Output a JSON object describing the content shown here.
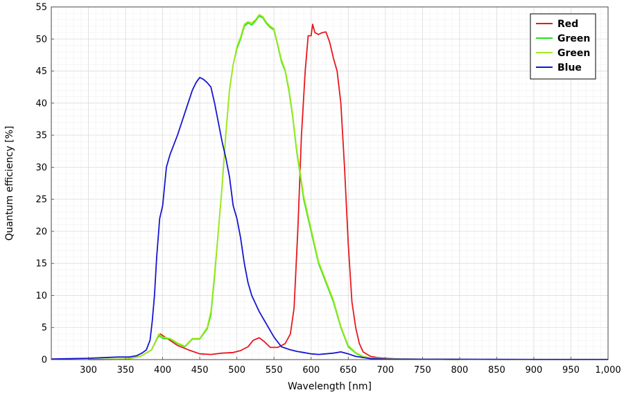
{
  "chart_data": {
    "type": "line",
    "xlabel": "Wavelength [nm]",
    "ylabel": "Quantum efficiency [%]",
    "xlim": [
      250,
      1000
    ],
    "ylim": [
      0,
      55
    ],
    "xticks": [
      300,
      350,
      400,
      450,
      500,
      550,
      600,
      650,
      700,
      750,
      800,
      850,
      900,
      950,
      1000
    ],
    "xtick_labels": [
      "300",
      "350",
      "400",
      "450",
      "500",
      "550",
      "600",
      "650",
      "700",
      "750",
      "800",
      "850",
      "900",
      "950",
      "1,000"
    ],
    "yticks": [
      0,
      5,
      10,
      15,
      20,
      25,
      30,
      35,
      40,
      45,
      50,
      55
    ],
    "ytick_labels": [
      "0",
      "5",
      "10",
      "15",
      "20",
      "25",
      "30",
      "35",
      "40",
      "45",
      "50",
      "55"
    ],
    "grid": true,
    "legend_position": "top-right",
    "series": [
      {
        "name": "Red",
        "color": "#e8161c",
        "x": [
          300,
          350,
          370,
          385,
          392,
          397,
          402,
          410,
          420,
          435,
          450,
          465,
          480,
          495,
          505,
          515,
          522,
          530,
          537,
          545,
          555,
          565,
          572,
          577,
          582,
          587,
          592,
          596,
          600,
          602,
          605,
          610,
          615,
          620,
          625,
          630,
          635,
          640,
          645,
          650,
          655,
          660,
          665,
          670,
          680,
          690,
          700,
          720,
          760,
          800
        ],
        "y": [
          0,
          0.05,
          0.5,
          1.5,
          3.2,
          4.0,
          3.6,
          3.0,
          2.2,
          1.5,
          0.9,
          0.8,
          1.0,
          1.1,
          1.4,
          2.0,
          3.0,
          3.4,
          2.8,
          1.9,
          1.9,
          2.5,
          4.0,
          8,
          20,
          35,
          45,
          50.5,
          50.5,
          52.3,
          51,
          50.7,
          51,
          51.1,
          49.5,
          47,
          45,
          40,
          30,
          18,
          9,
          5,
          2.5,
          1.2,
          0.5,
          0.3,
          0.2,
          0.1,
          0.05,
          0.02
        ]
      },
      {
        "name": "Green",
        "color": "#22e21e",
        "x": [
          300,
          350,
          370,
          385,
          395,
          400,
          410,
          420,
          430,
          440,
          450,
          460,
          465,
          470,
          475,
          480,
          485,
          490,
          495,
          500,
          505,
          510,
          515,
          520,
          525,
          530,
          535,
          540,
          545,
          550,
          555,
          560,
          565,
          570,
          575,
          580,
          590,
          600,
          610,
          620,
          630,
          640,
          650,
          660,
          670,
          680,
          700,
          750,
          800
        ],
        "y": [
          0,
          0.1,
          0.5,
          1.5,
          3.8,
          3.3,
          3.2,
          2.5,
          2.0,
          3.2,
          3.2,
          4.8,
          7,
          13,
          20,
          27,
          35,
          42,
          46,
          48.5,
          50,
          52,
          52.5,
          52.2,
          52.8,
          53.6,
          53.3,
          52.4,
          51.8,
          51.4,
          49,
          46.5,
          45,
          42,
          38,
          33,
          25,
          20,
          15,
          12,
          9,
          5,
          2,
          1,
          0.4,
          0.2,
          0.1,
          0.05,
          0.02
        ]
      },
      {
        "name": "Green",
        "color": "#a3e81a",
        "x": [
          300,
          350,
          370,
          385,
          395,
          400,
          410,
          420,
          430,
          440,
          450,
          460,
          465,
          470,
          475,
          480,
          485,
          490,
          495,
          500,
          505,
          510,
          515,
          520,
          525,
          530,
          535,
          540,
          545,
          550,
          555,
          560,
          565,
          570,
          575,
          580,
          590,
          600,
          610,
          620,
          630,
          640,
          650,
          660,
          670,
          680,
          700,
          750,
          800
        ],
        "y": [
          0,
          0.1,
          0.5,
          1.5,
          4.0,
          3.5,
          3.3,
          2.6,
          2.1,
          3.3,
          3.3,
          5.0,
          7.5,
          13.5,
          20,
          27,
          35,
          42,
          46,
          48.8,
          50.3,
          52.3,
          52.7,
          52.5,
          53,
          53.8,
          53.5,
          52.6,
          52,
          51.6,
          49.2,
          46.8,
          45.2,
          42.3,
          38.3,
          33.3,
          25.5,
          20.4,
          15.3,
          12.3,
          9.3,
          5.2,
          2.2,
          1.1,
          0.5,
          0.25,
          0.12,
          0.06,
          0.02
        ]
      },
      {
        "name": "Blue",
        "color": "#1515d2",
        "x": [
          250,
          300,
          320,
          340,
          355,
          365,
          372,
          378,
          383,
          386,
          389,
          392,
          396,
          400,
          405,
          410,
          420,
          430,
          440,
          445,
          450,
          455,
          460,
          465,
          470,
          475,
          480,
          485,
          490,
          495,
          500,
          505,
          510,
          515,
          520,
          530,
          540,
          550,
          560,
          570,
          580,
          590,
          600,
          610,
          620,
          630,
          640,
          650,
          660,
          680,
          700,
          750,
          800,
          850,
          900,
          950,
          1000
        ],
        "y": [
          0.1,
          0.2,
          0.3,
          0.4,
          0.4,
          0.6,
          1.0,
          1.5,
          3.0,
          6,
          10,
          16,
          22,
          24,
          30,
          32,
          35,
          38.5,
          42,
          43.2,
          44,
          43.7,
          43.2,
          42.5,
          40,
          37,
          34,
          31.5,
          28.5,
          24,
          22,
          19,
          15,
          12,
          10,
          7.5,
          5.5,
          3.5,
          2,
          1.6,
          1.3,
          1.1,
          0.9,
          0.8,
          0.9,
          1.0,
          1.2,
          0.9,
          0.5,
          0.15,
          0.08,
          0.05,
          0.05,
          0.03,
          0.02,
          0.02,
          0.02
        ]
      }
    ]
  }
}
